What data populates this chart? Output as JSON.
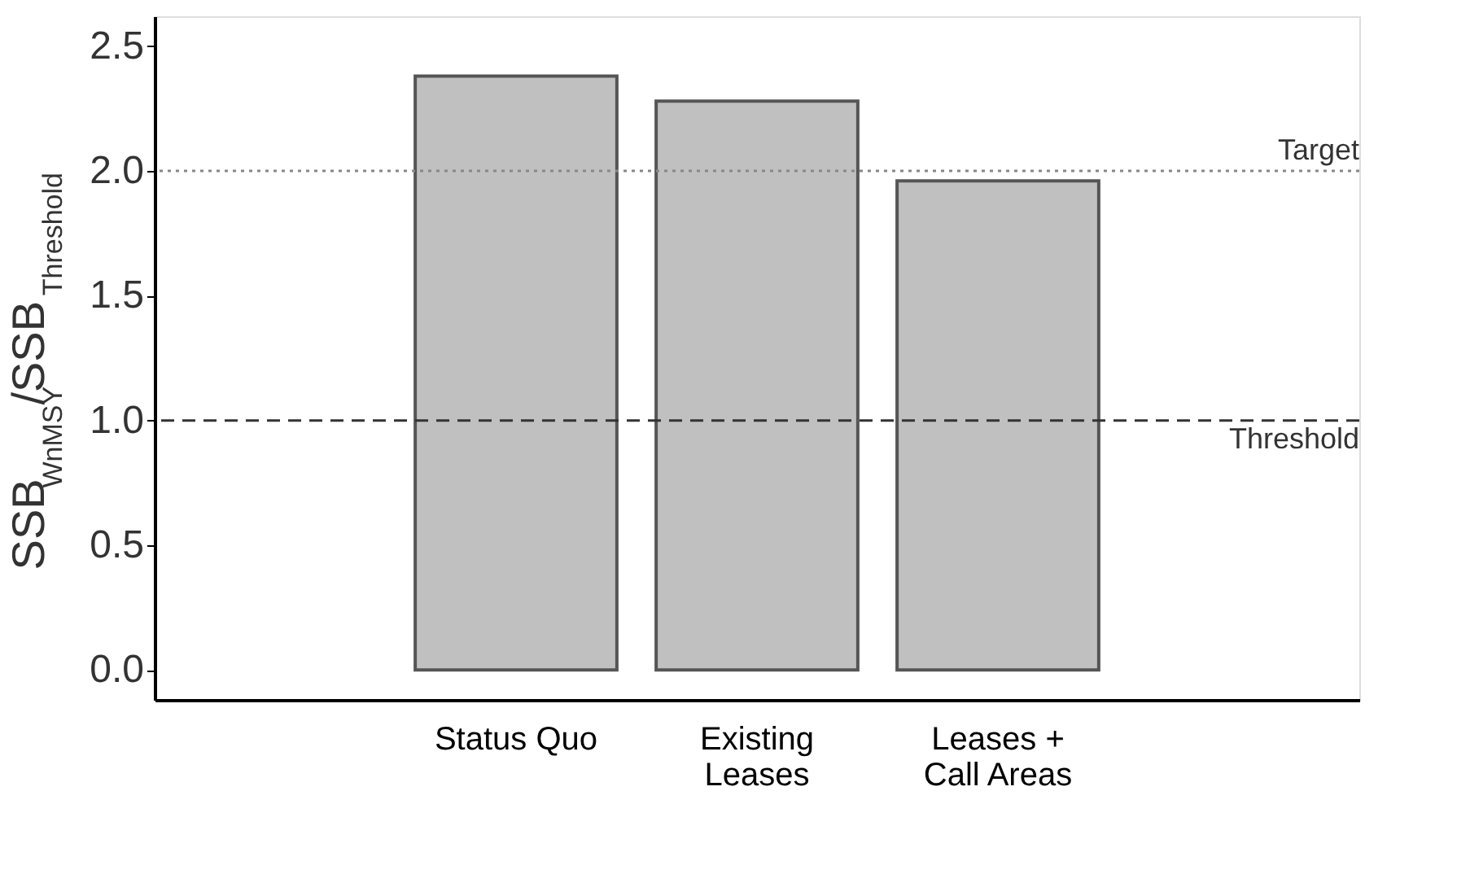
{
  "chart_data": {
    "type": "bar",
    "ylabel": "SSB$_{WnMSY}$/SSB$_{Threshold}$",
    "categories": [
      null,
      "Status Quo",
      "Existing Leases",
      "Leases + Call Areas",
      null
    ],
    "values": [
      null,
      2.38,
      2.28,
      1.96,
      null
    ],
    "color": "#c0c0c0",
    "ylim": [
      -0.12,
      2.62
    ],
    "yticks": [
      {
        "value": 0,
        "label": "0.0"
      },
      {
        "value": 0.5,
        "label": "0.5"
      },
      {
        "value": 1,
        "label": "1.0"
      },
      {
        "value": 1.5,
        "label": "1.5"
      },
      {
        "value": 2,
        "label": "2.0"
      },
      {
        "value": 2.5,
        "label": "2.5"
      }
    ],
    "ref_lines": [
      {
        "axis": "y",
        "value": 2,
        "label": "Target",
        "line_style": "dotted",
        "color": "#888888"
      },
      {
        "axis": "y",
        "value": 1,
        "label": "Threshold",
        "line_style": "dashed",
        "color": "#333333"
      }
    ],
    "grid": false
  }
}
